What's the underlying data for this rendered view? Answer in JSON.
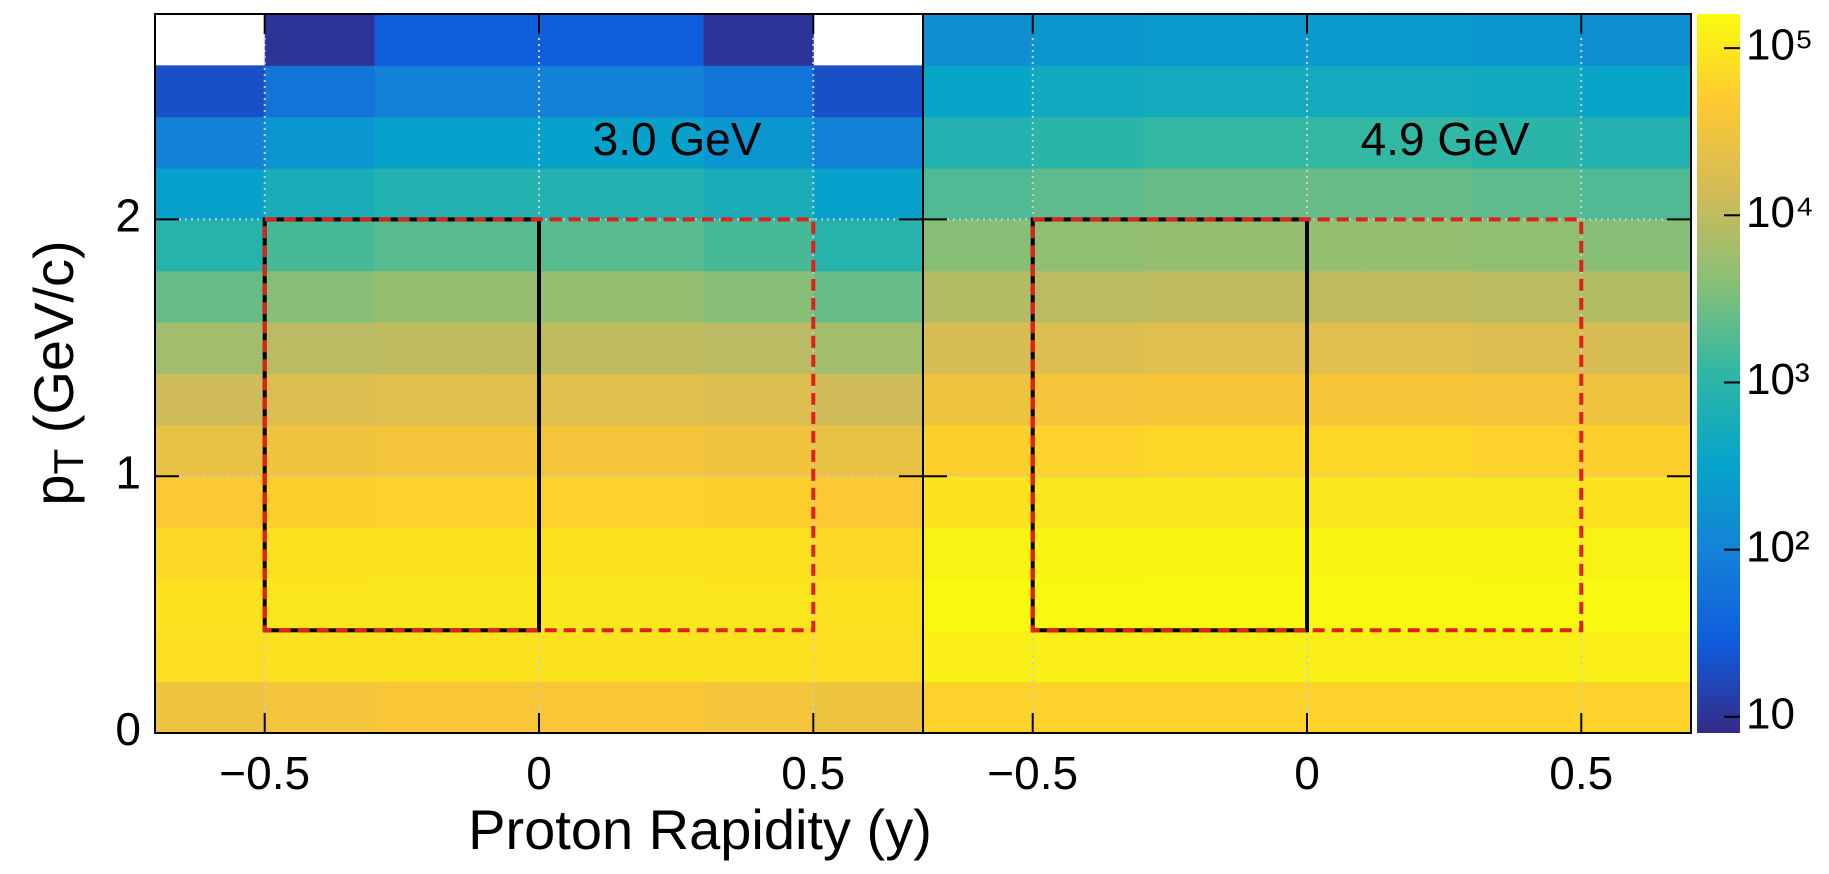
{
  "chart_data": {
    "type": "heatmap",
    "xlabel": "Proton Rapidity (y)",
    "ylabel": [
      "p",
      "T",
      " (GeV/c)"
    ],
    "xlim": [
      -0.7,
      0.7
    ],
    "xticks": [
      {
        "value": -0.5,
        "label": "−0.5"
      },
      0,
      0.5
    ],
    "ylim": [
      0,
      2.8
    ],
    "yticks": [
      0,
      1,
      2
    ],
    "grid": true,
    "log_z": true,
    "zlim": [
      8,
      160000
    ],
    "zticks": [
      10,
      {
        "value": 100,
        "label": "10²"
      },
      {
        "value": 1000,
        "label": "10³"
      },
      {
        "value": 10000,
        "label": "10⁴"
      },
      {
        "value": 100000,
        "label": "10⁵"
      }
    ],
    "colormap": [
      "#352a87",
      "#0f5cdd",
      "#1481d6",
      "#06a4ca",
      "#2eb7a4",
      "#87bf77",
      "#d1bb59",
      "#fec832",
      "#f9fb0e"
    ],
    "xbins": [
      -0.7,
      -0.5,
      -0.3,
      -0.1,
      0.1,
      0.3,
      0.5,
      0.7
    ],
    "ybins": [
      0,
      0.2,
      0.4,
      0.6,
      0.8,
      1.0,
      1.2,
      1.4,
      1.6,
      1.8,
      2.0,
      2.2,
      2.4,
      2.6,
      2.8
    ],
    "regions": [
      {
        "x": [
          -0.5,
          0
        ],
        "y": [
          0.4,
          2
        ],
        "color": "#000000",
        "dashed": false
      },
      {
        "x": [
          -0.5,
          0.5
        ],
        "y": [
          0.4,
          2
        ],
        "color": "#e0201b",
        "dashed": true
      }
    ],
    "panels": [
      {
        "title": "3.0 GeV",
        "z": [
          [
            30000,
            35000,
            40000,
            40000,
            40000,
            35000,
            30000
          ],
          [
            80000,
            85000,
            90000,
            90000,
            90000,
            85000,
            80000
          ],
          [
            85000,
            95000,
            100000,
            100000,
            100000,
            95000,
            85000
          ],
          [
            70000,
            85000,
            90000,
            90000,
            90000,
            85000,
            70000
          ],
          [
            45000,
            55000,
            60000,
            60000,
            60000,
            55000,
            45000
          ],
          [
            25000,
            32000,
            35000,
            35000,
            35000,
            32000,
            25000
          ],
          [
            13000,
            18000,
            20000,
            20000,
            20000,
            18000,
            13000
          ],
          [
            6000,
            9000,
            10000,
            10000,
            10000,
            9000,
            6000
          ],
          [
            2500,
            4000,
            5000,
            5000,
            5000,
            4000,
            2500
          ],
          [
            900,
            1600,
            2000,
            2000,
            2000,
            1600,
            900
          ],
          [
            300,
            600,
            800,
            800,
            800,
            600,
            300
          ],
          [
            100,
            200,
            300,
            300,
            300,
            200,
            100
          ],
          [
            20,
            60,
            100,
            100,
            100,
            60,
            20
          ],
          [
            null,
            10,
            30,
            30,
            30,
            10,
            null
          ]
        ]
      },
      {
        "title": "4.9 GeV",
        "z": [
          [
            60000,
            60000,
            60000,
            60000,
            60000,
            60000,
            60000
          ],
          [
            120000,
            120000,
            120000,
            120000,
            120000,
            120000,
            120000
          ],
          [
            150000,
            150000,
            150000,
            150000,
            150000,
            150000,
            150000
          ],
          [
            130000,
            135000,
            140000,
            140000,
            140000,
            135000,
            130000
          ],
          [
            90000,
            95000,
            100000,
            100000,
            100000,
            95000,
            90000
          ],
          [
            55000,
            60000,
            65000,
            65000,
            65000,
            60000,
            55000
          ],
          [
            30000,
            35000,
            38000,
            38000,
            38000,
            35000,
            30000
          ],
          [
            16000,
            18000,
            20000,
            20000,
            20000,
            18000,
            16000
          ],
          [
            8000,
            9000,
            10000,
            10000,
            10000,
            9000,
            8000
          ],
          [
            4000,
            4500,
            5000,
            5000,
            5000,
            4500,
            4000
          ],
          [
            1800,
            2200,
            2500,
            2500,
            2500,
            2200,
            1800
          ],
          [
            800,
            1000,
            1200,
            1200,
            1200,
            1000,
            800
          ],
          [
            350,
            450,
            500,
            500,
            500,
            450,
            350
          ],
          [
            150,
            200,
            220,
            220,
            220,
            200,
            150
          ]
        ]
      }
    ]
  }
}
